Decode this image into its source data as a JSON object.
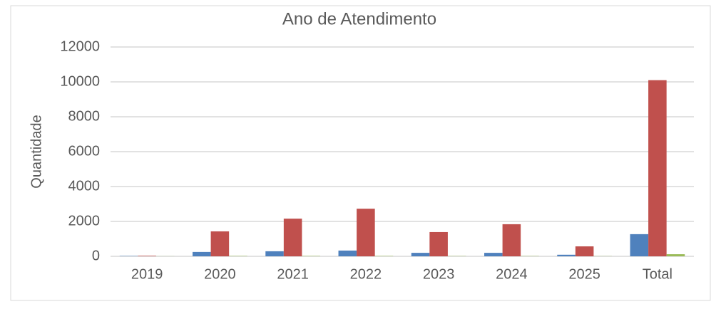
{
  "chart_data": {
    "type": "bar",
    "title": "Ano de Atendimento",
    "y_label": "Quantidade",
    "categories": [
      "2019",
      "2020",
      "2021",
      "2022",
      "2023",
      "2024",
      "2025",
      "Total"
    ],
    "series": [
      {
        "color": "#4f81bd",
        "values": [
          20,
          250,
          290,
          330,
          200,
          200,
          90,
          1270
        ]
      },
      {
        "color": "#c0504d",
        "values": [
          30,
          1430,
          2160,
          2730,
          1390,
          1840,
          570,
          10100
        ]
      },
      {
        "color": "#9bbb59",
        "values": [
          5,
          20,
          20,
          20,
          15,
          15,
          10,
          120
        ]
      }
    ],
    "ylim": [
      0,
      12000
    ],
    "yticks": [
      0,
      2000,
      4000,
      6000,
      8000,
      10000,
      12000
    ],
    "grid": true
  }
}
